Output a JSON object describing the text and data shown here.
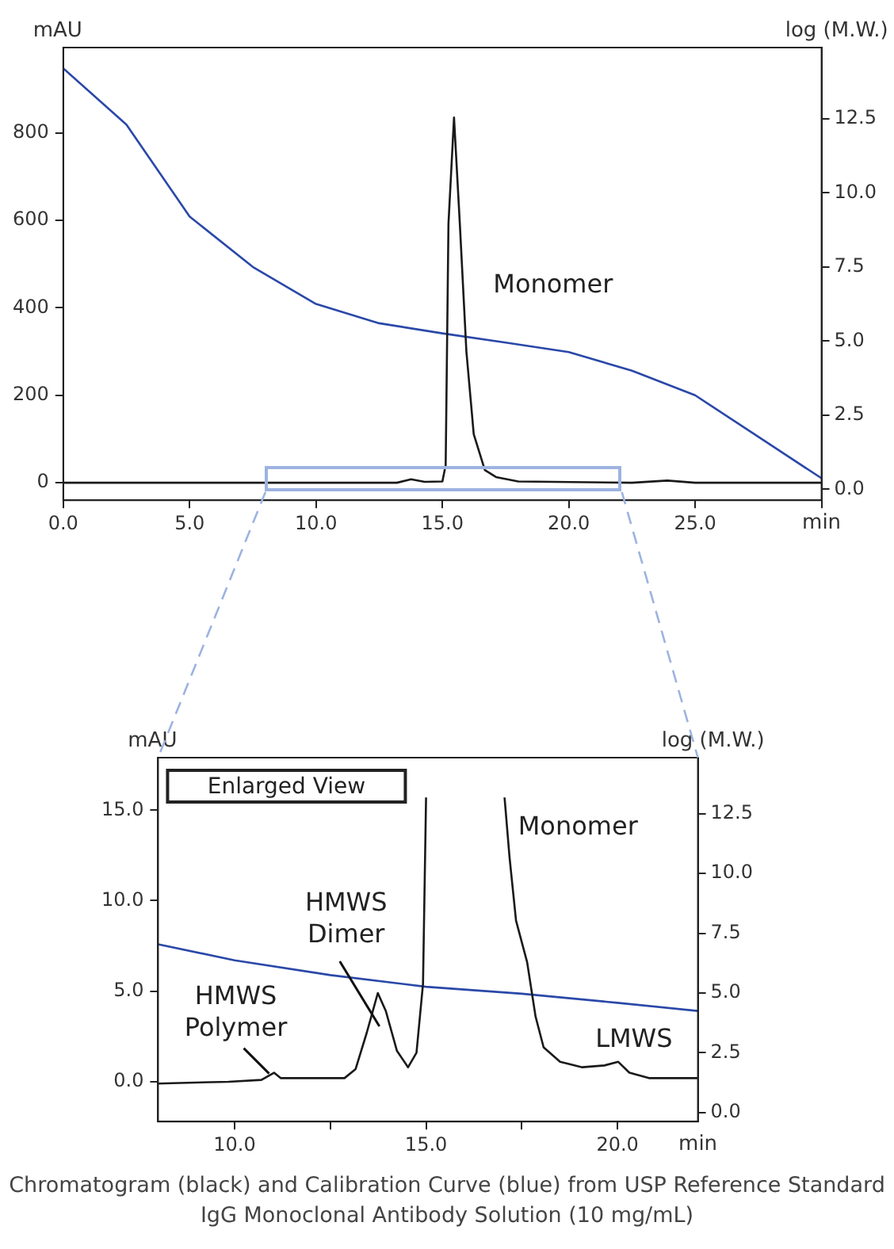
{
  "chart_data": [
    {
      "type": "line",
      "xlabel": "min",
      "ylabel": "mAU",
      "y2label": "log (M.W.)",
      "xlim": [
        0,
        30
      ],
      "xticks": [
        {
          "value": 0,
          "label": "0.0"
        },
        {
          "value": 5,
          "label": "5.0"
        },
        {
          "value": 10,
          "label": "10.0"
        },
        {
          "value": 15,
          "label": "15.0"
        },
        {
          "value": 20,
          "label": "20.0"
        },
        {
          "value": 25,
          "label": "25.0"
        },
        {
          "value": 30,
          "label": null
        }
      ],
      "ylim": [
        -40,
        995
      ],
      "yticks": [
        0,
        200,
        400,
        600,
        800
      ],
      "y2lim": [
        -0.37,
        14.9
      ],
      "y2ticks": [
        {
          "value": 0,
          "label": "0.0"
        },
        {
          "value": 2.5,
          "label": "2.5"
        },
        {
          "value": 5,
          "label": "5.0"
        },
        {
          "value": 7.5,
          "label": "7.5"
        },
        {
          "value": 10,
          "label": "10.0"
        },
        {
          "value": 12.5,
          "label": "12.5"
        }
      ],
      "series": [
        {
          "color": "#1a1a1a",
          "x": [
            0,
            10,
            13.2,
            13.76,
            14.3,
            15.0,
            15.13,
            15.24,
            15.46,
            15.69,
            15.95,
            16.24,
            16.68,
            17.12,
            18.0,
            22.5,
            23.9,
            25.0,
            30
          ],
          "values": [
            0,
            0,
            0,
            8,
            2,
            3,
            40,
            592,
            835,
            592,
            300,
            111,
            29,
            13,
            3,
            0,
            5,
            0,
            0
          ]
        },
        {
          "color": "#2a48a8",
          "axis": "y2",
          "x": [
            0,
            2.5,
            5,
            7.5,
            10,
            12.5,
            15,
            17.5,
            20,
            22.5,
            25,
            27.5,
            30
          ],
          "values": [
            14.2,
            12.3,
            9.2,
            7.5,
            6.25,
            5.6,
            5.26,
            4.95,
            4.63,
            4.0,
            3.17,
            1.77,
            0.37
          ]
        }
      ],
      "annotations": [
        "Monomer"
      ],
      "grid": false,
      "legend": false,
      "marker": "none",
      "line_style": "solid"
    },
    {
      "type": "line",
      "title": "Enlarged View",
      "xlabel": "min",
      "xlim": [
        8,
        22.1
      ],
      "xticks": [
        {
          "value": 10,
          "label": "10.0"
        },
        {
          "value": 12.5,
          "label": null
        },
        {
          "value": 15,
          "label": "15.0"
        },
        {
          "value": 17.5,
          "label": null
        },
        {
          "value": 20,
          "label": "20.0"
        }
      ],
      "ylim": [
        -2.2,
        17.9
      ],
      "yticks": [
        {
          "value": 0,
          "label": "0.0"
        },
        {
          "value": 5,
          "label": "5.0"
        },
        {
          "value": 10,
          "label": "10.0"
        },
        {
          "value": 15,
          "label": "15.0"
        }
      ],
      "ylabel": "mAU",
      "y2label": "log (M.W.)",
      "y2lim": [
        -0.38,
        14.85
      ],
      "y2ticks": [
        {
          "value": 0,
          "label": "0.0"
        },
        {
          "value": 2.5,
          "label": "2.5"
        },
        {
          "value": 5,
          "label": "5.0"
        },
        {
          "value": 7.5,
          "label": "7.5"
        },
        {
          "value": 10,
          "label": "10.0"
        },
        {
          "value": 12.5,
          "label": "12.5"
        }
      ],
      "series": [
        {
          "color": "#1a1a1a",
          "x": [
            8,
            9.84,
            10.7,
            11.03,
            11.2,
            11.86,
            12.87,
            13.16,
            13.45,
            13.74,
            13.95,
            14.24,
            14.53,
            14.75,
            14.92,
            15.0,
            16,
            17.05,
            17.18,
            17.35,
            17.64,
            17.86,
            18.07,
            18.5,
            19.08,
            19.66,
            20.02,
            20.31,
            20.82,
            22.1
          ],
          "values": [
            -0.1,
            0,
            0.1,
            0.5,
            0.2,
            0.2,
            0.2,
            0.7,
            2.7,
            4.9,
            3.9,
            1.7,
            0.8,
            1.6,
            5.4,
            15.7,
            null,
            15.7,
            12.4,
            8.9,
            6.6,
            3.6,
            1.9,
            1.1,
            0.8,
            0.9,
            1.1,
            0.5,
            0.2,
            0.2
          ]
        },
        {
          "color": "#2a48a8",
          "axis": "y2",
          "x": [
            8,
            10,
            12.5,
            15,
            17.5,
            20,
            22.1
          ],
          "values": [
            7.04,
            6.37,
            5.75,
            5.26,
            4.97,
            4.59,
            4.25
          ]
        }
      ],
      "annotations": [
        "Monomer",
        {
          "text": "HMWS\nDimer",
          "x": 13.74,
          "y": 4.9
        },
        {
          "text": "HMWS\nPolymer",
          "x": 10.9,
          "y": 0.45
        },
        "LMWS",
        "Chromatogram (black) and Calibration Curve (blue) from USP Reference Standard IgG Monoclonal Antibody Solution (10 mg/mL)"
      ],
      "grid": false,
      "legend": false,
      "marker": "none",
      "line_style": "solid"
    }
  ]
}
